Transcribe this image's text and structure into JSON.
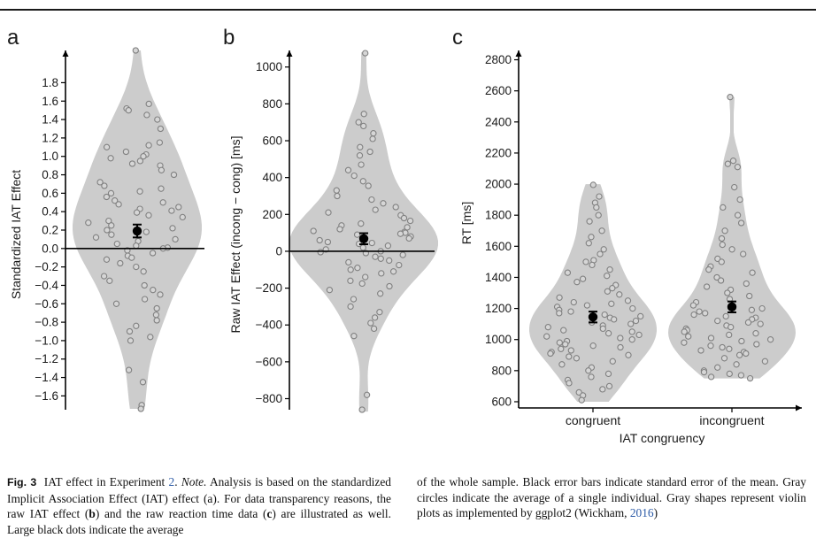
{
  "caption": {
    "fig_label": "Fig. 3",
    "part1": "IAT effect in Experiment ",
    "exp_link": "2",
    "part2": ". ",
    "note": "Note.",
    "part3": " Analysis is based on the standardized Implicit Association Effect (IAT) effect (a). For data transparency reasons, the raw IAT effect (",
    "b": "b",
    "part4": ") and the raw reaction time data (",
    "c": "c",
    "part5": ") are illustrated as well. Large black dots indicate the average",
    "right_part1": "of the whole sample. Black error bars indicate standard error of the mean. Gray circles indicate the average of a single individual. Gray shapes represent violin plots as implemented by ggplot2 (Wickham, ",
    "right_link": "2016",
    "right_part2": ")"
  },
  "colors": {
    "violin": "#cccccc",
    "point_stroke": "#808080",
    "point_fill": "#d6d6d6",
    "axis": "#000000",
    "text": "#1a1a1a",
    "link": "#2b5aa6"
  },
  "chart_data": [
    {
      "panel": "a",
      "type": "violin",
      "ylabel": "Standardized IAT Effect",
      "xlabel": "",
      "ylim": [
        -1.75,
        2.15
      ],
      "yticks": [
        1.8,
        1.6,
        1.4,
        1.2,
        1.0,
        0.8,
        0.6,
        0.4,
        0.2,
        0.0,
        -0.2,
        -0.4,
        -0.6,
        -0.8,
        -1.0,
        -1.2,
        -1.4,
        -1.6
      ],
      "ytick_labels": [
        "1.8",
        "1.6",
        "1.4",
        "1.2",
        "1.0",
        "0.8",
        "0.6",
        "0.4",
        "0.2",
        "0.0",
        "−0.2",
        "−0.4",
        "−0.6",
        "−0.8",
        "−1.0",
        "−1.2",
        "−1.4",
        "−1.6"
      ],
      "reference_line": 0.0,
      "violin_range": [
        -1.74,
        2.15
      ],
      "mean": 0.19,
      "se": 0.07,
      "points": [
        2.15,
        1.57,
        1.52,
        1.5,
        1.45,
        1.4,
        1.3,
        1.15,
        1.12,
        1.1,
        1.05,
        1.02,
        1.0,
        0.98,
        0.95,
        0.92,
        0.9,
        0.85,
        0.8,
        0.72,
        0.68,
        0.65,
        0.62,
        0.6,
        0.56,
        0.52,
        0.5,
        0.48,
        0.45,
        0.43,
        0.41,
        0.39,
        0.36,
        0.34,
        0.3,
        0.28,
        0.25,
        0.22,
        0.2,
        0.18,
        0.15,
        0.12,
        0.1,
        0.08,
        0.05,
        0.03,
        0.01,
        0.0,
        -0.02,
        -0.05,
        -0.08,
        -0.1,
        -0.12,
        -0.16,
        -0.2,
        -0.25,
        -0.3,
        -0.35,
        -0.4,
        -0.45,
        -0.5,
        -0.55,
        -0.6,
        -0.65,
        -0.72,
        -0.78,
        -0.84,
        -0.9,
        -0.96,
        -1.0,
        -1.32,
        -1.45,
        -1.7,
        -1.74
      ]
    },
    {
      "panel": "b",
      "type": "violin",
      "ylabel": "Raw IAT Effect (incong − cong) [ms]",
      "xlabel": "",
      "ylim": [
        -860,
        1090
      ],
      "yticks": [
        1000,
        800,
        600,
        400,
        200,
        0,
        -200,
        -400,
        -600,
        -800
      ],
      "ytick_labels": [
        "1000",
        "800",
        "600",
        "400",
        "200",
        "0",
        "−200",
        "−400",
        "−600",
        "−800"
      ],
      "reference_line": 0,
      "violin_range": [
        -870,
        1080
      ],
      "mean": 68,
      "se": 30,
      "points": [
        1075,
        745,
        700,
        680,
        640,
        610,
        565,
        540,
        520,
        470,
        440,
        410,
        380,
        355,
        330,
        300,
        280,
        260,
        240,
        225,
        210,
        195,
        180,
        165,
        150,
        140,
        130,
        120,
        110,
        105,
        100,
        95,
        90,
        80,
        70,
        60,
        50,
        45,
        40,
        30,
        20,
        10,
        0,
        -5,
        -10,
        -20,
        -30,
        -40,
        -50,
        -60,
        -75,
        -90,
        -100,
        -110,
        -120,
        -140,
        -160,
        -175,
        -190,
        -210,
        -230,
        -260,
        -300,
        -330,
        -360,
        -390,
        -420,
        -460,
        -780,
        -860
      ]
    },
    {
      "panel": "c",
      "type": "violin",
      "title": "",
      "ylabel": "RT [ms]",
      "xlabel": "IAT congruency",
      "categories": [
        "congruent",
        "incongruent"
      ],
      "ylim": [
        560,
        2860
      ],
      "yticks": [
        2800,
        2600,
        2400,
        2200,
        2000,
        1800,
        1600,
        1400,
        1200,
        1000,
        800,
        600
      ],
      "ytick_labels": [
        "2800",
        "2600",
        "2400",
        "2200",
        "2000",
        "1800",
        "1600",
        "1400",
        "1200",
        "1000",
        "800",
        "600"
      ],
      "series": [
        {
          "name": "congruent",
          "violin_range": [
            600,
            2000
          ],
          "mean": 1145,
          "se": 35,
          "points": [
            1995,
            1920,
            1880,
            1850,
            1800,
            1760,
            1700,
            1660,
            1620,
            1580,
            1550,
            1510,
            1500,
            1480,
            1450,
            1430,
            1410,
            1390,
            1370,
            1350,
            1330,
            1310,
            1290,
            1270,
            1250,
            1240,
            1230,
            1220,
            1210,
            1200,
            1190,
            1180,
            1170,
            1160,
            1150,
            1140,
            1130,
            1120,
            1110,
            1100,
            1090,
            1080,
            1070,
            1060,
            1050,
            1040,
            1030,
            1020,
            1010,
            1000,
            990,
            980,
            970,
            960,
            950,
            940,
            930,
            920,
            910,
            900,
            890,
            880,
            860,
            840,
            820,
            800,
            780,
            760,
            740,
            720,
            700,
            680,
            660,
            640,
            610
          ]
        },
        {
          "name": "incongruent",
          "violin_range": [
            750,
            2560
          ],
          "mean": 1210,
          "se": 35,
          "points": [
            2560,
            2150,
            2130,
            2110,
            1980,
            1900,
            1850,
            1800,
            1750,
            1700,
            1650,
            1610,
            1580,
            1550,
            1520,
            1500,
            1470,
            1450,
            1430,
            1400,
            1380,
            1360,
            1340,
            1320,
            1300,
            1280,
            1260,
            1240,
            1220,
            1200,
            1190,
            1180,
            1170,
            1160,
            1150,
            1140,
            1130,
            1120,
            1110,
            1100,
            1090,
            1080,
            1070,
            1060,
            1050,
            1040,
            1030,
            1020,
            1010,
            1000,
            990,
            980,
            970,
            960,
            950,
            940,
            930,
            920,
            910,
            900,
            880,
            860,
            840,
            820,
            800,
            790,
            780,
            770,
            760,
            750
          ]
        }
      ]
    }
  ]
}
